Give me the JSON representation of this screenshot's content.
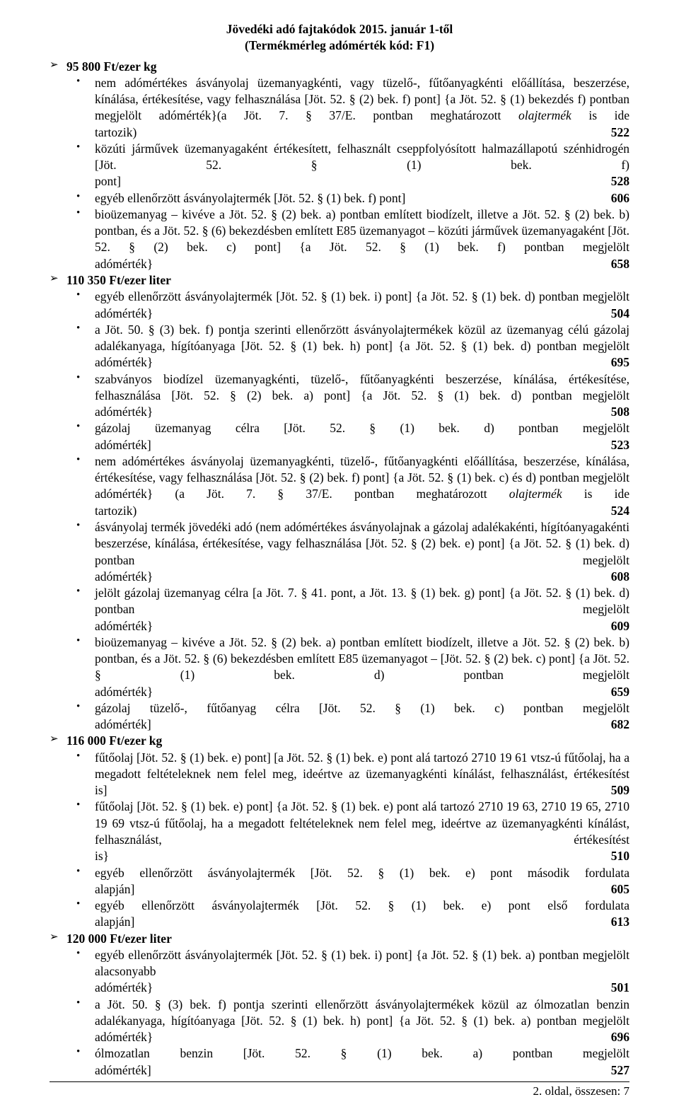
{
  "title_line1": "Jövedéki adó fajtakódok 2015. január 1-től",
  "title_line2": "(Termékmérleg adómérték kód: F1)",
  "sections": [
    {
      "header": "95 800 Ft/ezer kg",
      "items": [
        {
          "pre": "nem adómértékes ásványolaj üzemanyagkénti, vagy tüzelő-, fűtőanyagkénti előállítása, beszerzése, kínálása, értékesítése, vagy felhasználása [Jöt. 52. § (2) bek. f) pont] {a Jöt. 52. § (1) bekezdés f) pontban megjelölt adómérték}(a Jöt. 7. § 37/E. pontban meghatározott ",
          "italic": "olajtermék",
          "post": " is ide tartozik)",
          "code": "522"
        },
        {
          "pre": "közúti járművek üzemanyagaként értékesített, felhasznált cseppfolyósított halmazállapotú szénhidrogén [Jöt. 52. § (1) bek. f) pont]",
          "code": "528"
        },
        {
          "pre": "egyéb ellenőrzött ásványolajtermék [Jöt. 52. § (1) bek. f) pont]",
          "code": "606"
        },
        {
          "pre": "bioüzemanyag – kivéve a Jöt. 52. § (2) bek. a) pontban említett biodízelt, illetve a Jöt. 52. § (2) bek. b) pontban, és a Jöt. 52. § (6) bekezdésben említett E85 üzemanyagot – közúti járművek üzemanyagaként [Jöt. 52. § (2) bek. c) pont] {a Jöt. 52. § (1) bek. f) pontban megjelölt adómérték}",
          "code": "658"
        }
      ]
    },
    {
      "header": "110 350 Ft/ezer liter",
      "items": [
        {
          "pre": "egyéb ellenőrzött ásványolajtermék [Jöt. 52. § (1) bek. i) pont] {a Jöt. 52. § (1) bek. d) pontban megjelölt adómérték}",
          "code": "504"
        },
        {
          "pre": "a Jöt. 50. § (3) bek. f) pontja szerinti ellenőrzött ásványolajtermékek közül az üzemanyag célú gázolaj adalékanyaga, hígítóanyaga [Jöt. 52. § (1) bek. h) pont] {a Jöt. 52. § (1) bek. d) pontban megjelölt adómérték}",
          "code": "695"
        },
        {
          "pre": "szabványos biodízel üzemanyagkénti, tüzelő-, fűtőanyagkénti beszerzése, kínálása, értékesítése, felhasználása [Jöt. 52. § (2) bek. a) pont] {a Jöt. 52. § (1) bek. d) pontban megjelölt adómérték}",
          "code": "508"
        },
        {
          "pre": "gázolaj üzemanyag célra [Jöt. 52. § (1) bek. d) pontban megjelölt adómérték]",
          "code": "523"
        },
        {
          "pre": "nem adómértékes ásványolaj üzemanyagkénti, tüzelő-, fűtőanyagkénti előállítása, beszerzése, kínálása, értékesítése, vagy felhasználása [Jöt. 52. § (2) bek. f) pont] {a Jöt. 52. § (1) bek. c) és d) pontban megjelölt adómérték} (a Jöt. 7. § 37/E. pontban meghatározott ",
          "italic": "olajtermék",
          "post": " is ide tartozik)",
          "code": "524"
        },
        {
          "pre": "ásványolaj termék jövedéki adó (nem adómértékes ásványolajnak a gázolaj adalékakénti, hígítóanyagakénti beszerzése, kínálása, értékesítése, vagy felhasználása [Jöt. 52. § (2) bek. e) pont] {a Jöt. 52. § (1) bek. d) pontban megjelölt adómérték}",
          "code": "608"
        },
        {
          "pre": "jelölt gázolaj üzemanyag célra [a Jöt. 7. § 41. pont, a Jöt. 13. § (1) bek. g) pont] {a Jöt. 52. § (1) bek. d) pontban megjelölt adómérték}",
          "code": "609"
        },
        {
          "pre": "bioüzemanyag – kivéve a Jöt. 52. § (2) bek. a) pontban említett biodízelt, illetve a Jöt. 52. § (2) bek. b) pontban, és a Jöt. 52. § (6) bekezdésben említett E85 üzemanyagot – [Jöt. 52. § (2) bek. c) pont] {a Jöt. 52. § (1) bek. d) pontban megjelölt adómérték}",
          "code": "659"
        },
        {
          "pre": "gázolaj tüzelő-, fűtőanyag célra [Jöt. 52. § (1) bek. c) pontban megjelölt adómérték]",
          "code": "682"
        }
      ]
    },
    {
      "header": "116 000 Ft/ezer kg",
      "items": [
        {
          "pre": "fűtőolaj [Jöt. 52. § (1) bek. e) pont] [a Jöt. 52. § (1) bek. e) pont alá tartozó 2710 19 61 vtsz-ú fűtőolaj, ha a megadott feltételeknek nem felel meg, ideértve az üzemanyagkénti kínálást, felhasználást, értékesítést is]",
          "code": "509"
        },
        {
          "pre": "fűtőolaj [Jöt. 52. § (1) bek. e) pont] {a Jöt. 52. § (1) bek. e) pont alá tartozó 2710 19 63, 2710 19 65, 2710 19 69 vtsz-ú fűtőolaj, ha a megadott feltételeknek nem felel meg, ideértve az üzemanyagkénti kínálást, felhasználást, értékesítést is}",
          "code": "510"
        },
        {
          "pre": "egyéb ellenőrzött ásványolajtermék [Jöt. 52. § (1) bek. e) pont második fordulata alapján]",
          "code": "605"
        },
        {
          "pre": "egyéb ellenőrzött ásványolajtermék [Jöt. 52. § (1) bek. e) pont első fordulata alapján]",
          "code": "613"
        }
      ]
    },
    {
      "header": "120 000 Ft/ezer liter",
      "items": [
        {
          "pre": "egyéb ellenőrzött ásványolajtermék [Jöt. 52. § (1) bek. i) pont] {a Jöt. 52. § (1) bek. a) pontban megjelölt alacsonyabb adómérték}",
          "code": "501"
        },
        {
          "pre": "a Jöt. 50. § (3) bek. f) pontja szerinti ellenőrzött ásványolajtermékek közül az ólmozatlan benzin adalékanyaga, hígítóanyaga [Jöt. 52. § (1) bek. h) pont] {a Jöt. 52. § (1) bek. a) pontban megjelölt adómérték}",
          "code": "696"
        },
        {
          "pre": "ólmozatlan benzin [Jöt. 52. § (1) bek. a) pontban megjelölt adómérték]",
          "code": "527"
        }
      ]
    }
  ],
  "footer": "2. oldal, összesen: 7"
}
